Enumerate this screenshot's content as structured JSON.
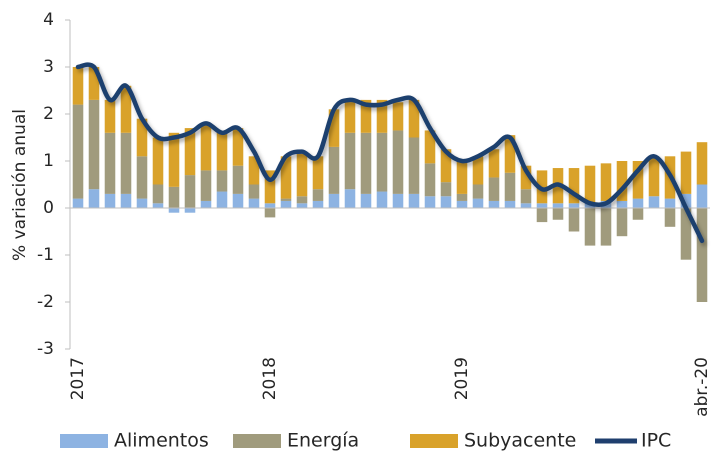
{
  "chart_data": {
    "type": "bar-line",
    "y_label": "% variación anual",
    "categories": [
      "2017",
      null,
      null,
      null,
      null,
      null,
      null,
      null,
      null,
      null,
      null,
      null,
      "2018",
      null,
      null,
      null,
      null,
      null,
      null,
      null,
      null,
      null,
      null,
      null,
      "2019",
      null,
      null,
      null,
      null,
      null,
      null,
      null,
      null,
      null,
      null,
      null,
      null,
      null,
      null,
      "abr.-20"
    ],
    "series": [
      {
        "name": "Alimentos",
        "color": "#8db3e2",
        "values": [
          0.2,
          0.4,
          0.3,
          0.3,
          0.2,
          0.1,
          -0.1,
          -0.1,
          0.15,
          0.35,
          0.3,
          0.2,
          0.1,
          0.15,
          0.1,
          0.15,
          0.3,
          0.4,
          0.3,
          0.35,
          0.3,
          0.3,
          0.25,
          0.25,
          0.15,
          0.2,
          0.15,
          0.15,
          0.1,
          0.1,
          0.1,
          0.1,
          0.1,
          0.15,
          0.15,
          0.2,
          0.25,
          0.2,
          0.3,
          0.5
        ]
      },
      {
        "name": "Energía",
        "color": "#a09b7d",
        "values": [
          2.0,
          1.9,
          1.3,
          1.3,
          0.9,
          0.4,
          0.45,
          0.7,
          0.65,
          0.45,
          0.6,
          0.3,
          -0.2,
          0.05,
          0.15,
          0.25,
          1.0,
          1.2,
          1.3,
          1.25,
          1.35,
          1.2,
          0.7,
          0.3,
          0.15,
          0.3,
          0.5,
          0.6,
          0.3,
          -0.3,
          -0.25,
          -0.5,
          -0.8,
          -0.8,
          -0.6,
          -0.25,
          0.0,
          -0.4,
          -1.1,
          -2.0
        ]
      },
      {
        "name": "Subyacente",
        "color": "#d9a22a",
        "values": [
          0.8,
          0.7,
          0.7,
          1.0,
          0.8,
          1.0,
          1.15,
          1.0,
          1.0,
          0.8,
          0.8,
          0.6,
          0.7,
          0.9,
          0.9,
          0.7,
          0.8,
          0.7,
          0.7,
          0.7,
          0.6,
          0.8,
          0.7,
          0.7,
          0.7,
          0.6,
          0.6,
          0.8,
          0.5,
          0.7,
          0.75,
          0.75,
          0.8,
          0.8,
          0.85,
          0.8,
          0.85,
          0.9,
          0.9,
          0.9
        ]
      },
      {
        "name": "IPC",
        "color": "#1f3f6e",
        "values": [
          3.0,
          3.0,
          2.3,
          2.6,
          1.9,
          1.5,
          1.5,
          1.6,
          1.8,
          1.6,
          1.7,
          1.2,
          0.6,
          1.1,
          1.2,
          1.1,
          2.1,
          2.3,
          2.2,
          2.2,
          2.3,
          2.3,
          1.7,
          1.2,
          1.0,
          1.1,
          1.3,
          1.5,
          0.8,
          0.4,
          0.5,
          0.3,
          0.1,
          0.1,
          0.4,
          0.8,
          1.1,
          0.7,
          0.0,
          -0.7
        ]
      }
    ],
    "ylim": [
      -3,
      4
    ],
    "yticks": [
      -3,
      -2,
      -1,
      0,
      1,
      2,
      3,
      4
    ]
  }
}
